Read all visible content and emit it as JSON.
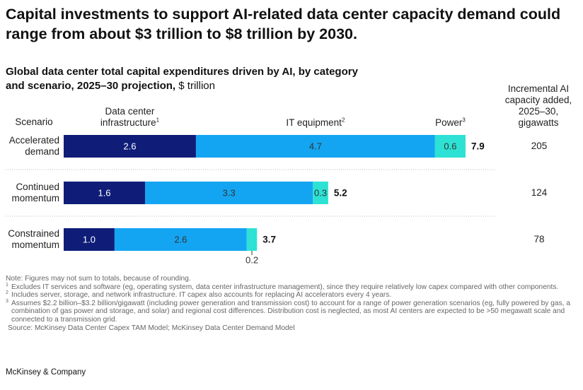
{
  "chart_data": {
    "type": "bar",
    "orientation": "horizontal",
    "stacked": true,
    "title": "Capital investments to support AI-related data center capacity demand could range from about $3 trillion to $8 trillion by 2030.",
    "subtitle": "Global data center total capital expenditures driven by AI, by category and scenario, 2025–30 projection,",
    "unit": "$ trillion",
    "category_header": "Scenario",
    "categories": [
      "Accelerated demand",
      "Continued momentum",
      "Constrained momentum"
    ],
    "series": [
      {
        "name": "Data center infrastructure",
        "note": "1",
        "color": "#0f1d78",
        "values": [
          2.6,
          1.6,
          1.0
        ],
        "value_labels": [
          "2.6",
          "1.6",
          "1.0"
        ]
      },
      {
        "name": "IT equipment",
        "note": "2",
        "color": "#14a5f2",
        "values": [
          4.7,
          3.3,
          2.6
        ]
      },
      {
        "name": "Power",
        "note": "3",
        "color": "#2de2d4",
        "values": [
          0.6,
          0.3,
          0.2
        ]
      }
    ],
    "totals": [
      7.9,
      5.2,
      3.7
    ],
    "capacity_header": "Incremental AI capacity added, 2025–30, gigawatts",
    "capacity": [
      205,
      124,
      78
    ],
    "note": "Note: Figures may not sum to totals, because of rounding.",
    "footnotes": [
      {
        "ref": "1",
        "text": "Excludes IT services and software (eg, operating system, data center infrastructure management), since they require relatively low capex compared with other components."
      },
      {
        "ref": "2",
        "text": "Includes server, storage, and network infrastructure. IT capex also accounts for replacing AI accelerators every 4 years."
      },
      {
        "ref": "3",
        "text": "Assumes $2.2 billion–$3.2 billion/gigawatt (including power generation and transmission cost) to account for a range of power generation scenarios (eg, fully powered by gas, a combination of gas power and storage, and solar) and regional cost differences. Distribution cost is neglected, as most AI centers are expected to be >50 megawatt scale and connected to a transmission grid."
      }
    ],
    "source": "Source: McKinsey Data Center Capex TAM Model; McKinsey Data Center Demand Model",
    "brand": "McKinsey & Company"
  }
}
